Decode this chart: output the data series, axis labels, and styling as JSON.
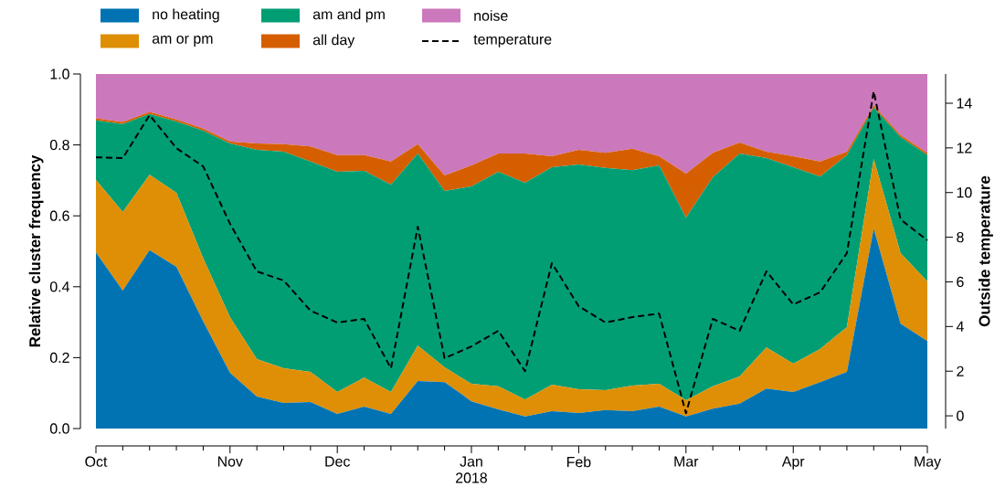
{
  "chart_data": {
    "type": "area",
    "stacked": true,
    "legend": "top",
    "grid": false,
    "ylabel": "Relative cluster frequency",
    "y2label": "Outside temperature",
    "categories": [
      "Oct",
      null,
      null,
      null,
      null,
      "Nov",
      null,
      null,
      null,
      "Dec",
      null,
      null,
      null,
      null,
      "Jan 2018",
      null,
      null,
      null,
      "Feb",
      null,
      null,
      null,
      "Mar",
      null,
      null,
      null,
      "Apr",
      null,
      null,
      null,
      null,
      "May"
    ],
    "ylim": [
      0,
      1
    ],
    "yticks": [
      {
        "value": 0,
        "label": "0.0"
      },
      {
        "value": 0.2,
        "label": "0.2"
      },
      {
        "value": 0.4,
        "label": "0.4"
      },
      {
        "value": 0.6,
        "label": "0.6"
      },
      {
        "value": 0.8,
        "label": "0.8"
      },
      {
        "value": 1,
        "label": "1.0"
      }
    ],
    "y2lim": [
      -0.57,
      15.31
    ],
    "y2ticks": [
      0,
      2,
      4,
      6,
      8,
      10,
      12,
      14
    ],
    "series": [
      {
        "name": "no heating",
        "color": "#0173b2",
        "values": [
          0.497,
          0.389,
          0.503,
          0.456,
          0.302,
          0.157,
          0.09,
          0.072,
          0.075,
          0.041,
          0.062,
          0.041,
          0.134,
          0.131,
          0.077,
          0.054,
          0.034,
          0.049,
          0.044,
          0.052,
          0.049,
          0.062,
          0.034,
          0.056,
          0.07,
          0.113,
          0.103,
          0.131,
          0.16,
          0.564,
          0.296,
          0.247
        ]
      },
      {
        "name": "am or pm",
        "color": "#de8f05",
        "values": [
          0.204,
          0.222,
          0.213,
          0.209,
          0.178,
          0.157,
          0.106,
          0.098,
          0.085,
          0.062,
          0.082,
          0.062,
          0.1,
          0.042,
          0.049,
          0.065,
          0.048,
          0.075,
          0.067,
          0.056,
          0.072,
          0.064,
          0.046,
          0.063,
          0.077,
          0.116,
          0.08,
          0.093,
          0.126,
          0.196,
          0.199,
          0.168
        ]
      },
      {
        "name": "am and pm",
        "color": "#029e73",
        "values": [
          0.168,
          0.248,
          0.171,
          0.201,
          0.36,
          0.49,
          0.59,
          0.611,
          0.593,
          0.621,
          0.583,
          0.585,
          0.542,
          0.497,
          0.557,
          0.605,
          0.611,
          0.613,
          0.634,
          0.627,
          0.608,
          0.616,
          0.515,
          0.59,
          0.629,
          0.534,
          0.554,
          0.487,
          0.485,
          0.145,
          0.327,
          0.356
        ]
      },
      {
        "name": "all day",
        "color": "#d55e00",
        "values": [
          0.006,
          0.006,
          0.006,
          0.006,
          0.006,
          0.006,
          0.018,
          0.021,
          0.043,
          0.047,
          0.044,
          0.065,
          0.026,
          0.044,
          0.059,
          0.052,
          0.083,
          0.031,
          0.041,
          0.043,
          0.06,
          0.026,
          0.124,
          0.069,
          0.031,
          0.018,
          0.031,
          0.042,
          0.01,
          0.006,
          0.006,
          0.006
        ]
      },
      {
        "name": "noise",
        "color": "#cc78bc",
        "values": [
          0.125,
          0.135,
          0.107,
          0.128,
          0.154,
          0.19,
          0.196,
          0.198,
          0.204,
          0.229,
          0.229,
          0.247,
          0.198,
          0.286,
          0.258,
          0.224,
          0.224,
          0.232,
          0.214,
          0.222,
          0.211,
          0.232,
          0.281,
          0.222,
          0.193,
          0.219,
          0.232,
          0.247,
          0.219,
          0.089,
          0.172,
          0.223
        ]
      },
      {
        "name": "temperature",
        "type": "line",
        "axis": "y2",
        "color": "#000000",
        "line_style": "dashed",
        "values": [
          11.58,
          11.54,
          13.47,
          11.99,
          11.17,
          8.6,
          6.47,
          6.06,
          4.71,
          4.18,
          4.34,
          2.13,
          8.47,
          2.58,
          3.11,
          3.81,
          2.0,
          6.84,
          4.91,
          4.18,
          4.42,
          4.58,
          0.12,
          4.34,
          3.81,
          6.47,
          4.99,
          5.53,
          7.29,
          14.53,
          8.8,
          7.86
        ]
      }
    ]
  }
}
